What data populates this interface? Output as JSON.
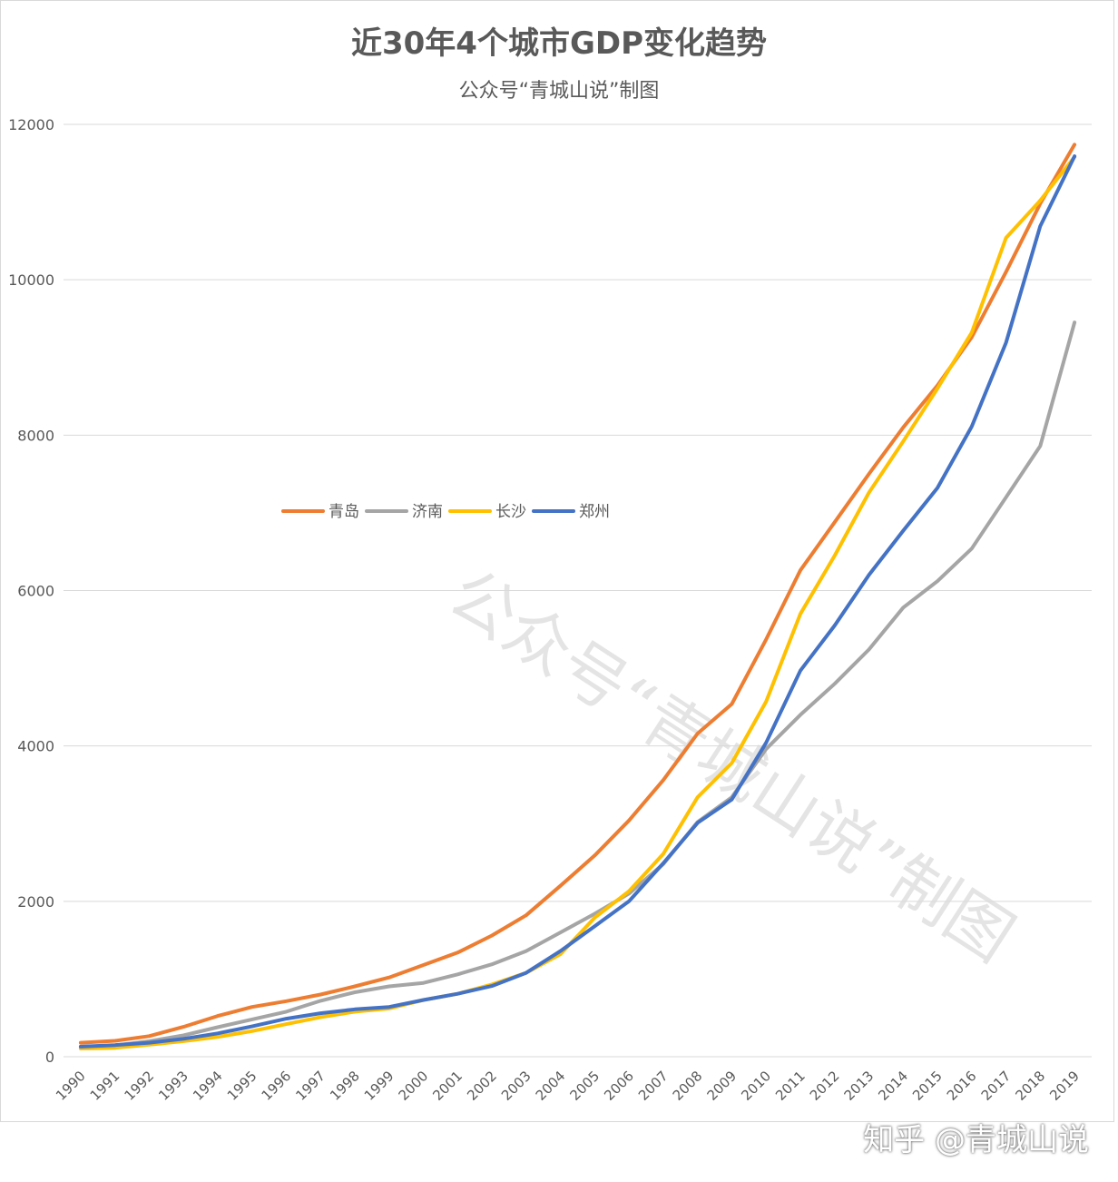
{
  "title": "近30年4个城市GDP变化趋势",
  "subtitle": "公众号“青城山说”制图",
  "watermark": "公众号“青城山说”制图",
  "footer_watermark": "知乎 @青城山说",
  "chart_data": {
    "type": "line",
    "title": "近30年4个城市GDP变化趋势",
    "subtitle": "公众号“青城山说”制图",
    "xlabel": "",
    "ylabel": "",
    "ylim": [
      0,
      12000
    ],
    "yticks": [
      0,
      2000,
      4000,
      6000,
      8000,
      10000,
      12000
    ],
    "grid": true,
    "legend_position": "center-left",
    "categories": [
      "1990",
      "1991",
      "1992",
      "1993",
      "1994",
      "1995",
      "1996",
      "1997",
      "1998",
      "1999",
      "2000",
      "2001",
      "2002",
      "2003",
      "2004",
      "2005",
      "2006",
      "2007",
      "2008",
      "2009",
      "2010",
      "2011",
      "2012",
      "2013",
      "2014",
      "2015",
      "2016",
      "2017",
      "2018",
      "2019"
    ],
    "series": [
      {
        "name": "青岛",
        "color": "#ED7D31",
        "values": [
          180,
          205,
          265,
          385,
          525,
          640,
          715,
          800,
          905,
          1020,
          1180,
          1340,
          1560,
          1820,
          2200,
          2590,
          3040,
          3560,
          4160,
          4540,
          5370,
          6260,
          6880,
          7500,
          8100,
          8640,
          9260,
          10100,
          10980,
          11740
        ]
      },
      {
        "name": "济南",
        "color": "#A5A5A5",
        "values": [
          115,
          145,
          200,
          275,
          380,
          480,
          580,
          720,
          830,
          905,
          950,
          1060,
          1190,
          1360,
          1600,
          1840,
          2100,
          2480,
          3020,
          3340,
          3960,
          4400,
          4800,
          5240,
          5780,
          6120,
          6540,
          7200,
          7860,
          9450
        ]
      },
      {
        "name": "长沙",
        "color": "#FFC000",
        "values": [
          105,
          115,
          155,
          200,
          255,
          330,
          420,
          510,
          580,
          620,
          730,
          810,
          930,
          1080,
          1320,
          1790,
          2130,
          2610,
          3340,
          3780,
          4570,
          5700,
          6450,
          7260,
          7920,
          8600,
          9320,
          10540,
          11020,
          11580
        ]
      },
      {
        "name": "郑州",
        "color": "#4472C4",
        "values": [
          130,
          150,
          180,
          230,
          300,
          390,
          490,
          560,
          610,
          640,
          730,
          810,
          910,
          1080,
          1360,
          1680,
          2000,
          2490,
          3010,
          3310,
          4040,
          4970,
          5550,
          6200,
          6770,
          7320,
          8110,
          9190,
          10690,
          11590
        ]
      }
    ]
  }
}
